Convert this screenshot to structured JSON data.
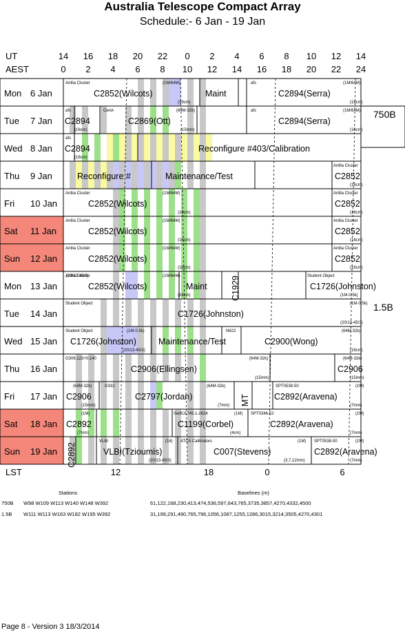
{
  "title": "Australia Telescope Compact Array",
  "subtitle": "Schedule:- 6  Jan - 19 Jan",
  "axes": {
    "ut_label": "UT",
    "aest_label": "AEST",
    "lst_label": "LST",
    "ut_ticks": [
      "14",
      "16",
      "18",
      "20",
      "22",
      "0",
      "2",
      "4",
      "6",
      "8",
      "10",
      "12",
      "14"
    ],
    "aest_ticks": [
      "0",
      "2",
      "4",
      "6",
      "8",
      "10",
      "12",
      "14",
      "16",
      "18",
      "20",
      "22",
      "24"
    ],
    "lst_ticks": [
      "12",
      "18",
      "0",
      "6"
    ]
  },
  "days": [
    {
      "day": "Mon",
      "date": "6 Jan",
      "weekend": false
    },
    {
      "day": "Tue",
      "date": "7 Jan",
      "weekend": false
    },
    {
      "day": "Wed",
      "date": "8 Jan",
      "weekend": false
    },
    {
      "day": "Thu",
      "date": "9 Jan",
      "weekend": false
    },
    {
      "day": "Fri",
      "date": "10 Jan",
      "weekend": false
    },
    {
      "day": "Sat",
      "date": "11 Jan",
      "weekend": true
    },
    {
      "day": "Sun",
      "date": "12 Jan",
      "weekend": true
    },
    {
      "day": "Mon",
      "date": "13 Jan",
      "weekend": false
    },
    {
      "day": "Tue",
      "date": "14 Jan",
      "weekend": false
    },
    {
      "day": "Wed",
      "date": "15 Jan",
      "weekend": false
    },
    {
      "day": "Thu",
      "date": "16 Jan",
      "weekend": false
    },
    {
      "day": "Fri",
      "date": "17 Jan",
      "weekend": false
    },
    {
      "day": "Sat",
      "date": "18 Jan",
      "weekend": true
    },
    {
      "day": "Sun",
      "date": "19 Jan",
      "weekend": true
    }
  ],
  "configs": [
    "750B",
    "1.5B"
  ],
  "colors": {
    "weekend": "#f4877a",
    "gray": "#c8c8c8",
    "green": "#9de08a",
    "blue": "#c8c8f8",
    "yellow": "#fafaa0"
  },
  "row_texts": [
    {
      "big": [
        "C2852(Wilcots)",
        "Maint",
        "C2894(Serra)"
      ],
      "small": [
        "Antlia Cluster",
        "(1M/64M)",
        "(16cm)",
        "afs",
        "(1M/64M)",
        "(16cm)"
      ]
    },
    {
      "big": [
        "C2894",
        "C2869(Ott)",
        "C2894(Serra)"
      ],
      "small": [
        "afs",
        "(16cm)",
        "CenA",
        "(64M-32k)",
        "(15mm)",
        "afs",
        "(1M/64M)",
        "(16cm)"
      ]
    },
    {
      "big": [
        "C2894",
        "Reconfigure #403/Calibration"
      ],
      "small": [
        "afs",
        "(16cm)"
      ]
    },
    {
      "big": [
        "Reconfigure #",
        "Maintenance/Test",
        "C2852"
      ],
      "small": [
        "Antlia Cluster",
        "(16cm)"
      ]
    },
    {
      "big": [
        "C2852(Wilcots)",
        "C2852"
      ],
      "small": [
        "Antlia Cluster",
        "(1M/64M)",
        "(16cm)",
        "Antlia Cluster",
        "(16cm)"
      ]
    },
    {
      "big": [
        "C2852(Wilcots)",
        "C2852"
      ],
      "small": [
        "Antlia Cluster",
        "(1M/64M)",
        "(16cm)",
        "Antlia Cluster",
        "(16cm)"
      ]
    },
    {
      "big": [
        "C2852(Wilcots)",
        "C2852"
      ],
      "small": [
        "Antlia Cluster",
        "(1M/64M)",
        "(16cm)",
        "Antlia Cluster",
        "(16cm)"
      ]
    },
    {
      "big": [
        "C2852(Wilcots)",
        "Maint",
        "C1929",
        "C1726(Johnston)"
      ],
      "small": [
        "Antlia Cluster",
        "(1M/64M)",
        "(16cm)",
        "Student Object",
        "(1M-0.5k)",
        "(20/13-45/3)"
      ]
    },
    {
      "big": [
        "C1726(Johnston)"
      ],
      "small": [
        "Student Object",
        "(1M-0.5k)",
        "(20/13-45/3)"
      ]
    },
    {
      "big": [
        "C1726(Johnston)",
        "Maintenance/Test",
        "C2900(Wong)"
      ],
      "small": [
        "Student Object",
        "(1M-0.5k)",
        "(20/13-45/3)",
        "N622",
        "(64M-32k)",
        "(16cm)"
      ]
    },
    {
      "big": [
        "C2906(Ellingsen)",
        "C2906"
      ],
      "small": [
        "G306.123+0.140",
        "(64M-32k)",
        "(15mm)",
        "(64M-32k)",
        "(15mm)"
      ]
    },
    {
      "big": [
        "C2906",
        "C2797(Jordan)",
        "MT",
        "C2892(Aravena)"
      ],
      "small": [
        "(64M-32k)",
        "(15mm)",
        "G332",
        "(64M-32k)",
        "(7mm)",
        "SPT0538-50",
        "(1M)",
        "(7mm)"
      ]
    },
    {
      "big": [
        "C2892",
        "C1199(Corbel)",
        "C2892(Aravena)"
      ],
      "small": [
        "(1M)",
        "(7mm)",
        "SwiftJ1745.1-2624",
        "(1M)",
        "(4cm)",
        "SPT0346-52",
        "(1M)",
        "(7mm)"
      ]
    },
    {
      "big": [
        "C2892",
        "VLBI(Tzioumis)",
        "C007(Stevens)",
        "C2892(Aravena)"
      ],
      "small": [
        "VLBI",
        "(16)",
        "(20/13-45/3)",
        "ATCA Calibrators",
        "(1M)",
        "(3,7,12mm)",
        "SPT0538-50",
        "(1M)",
        "(7mm)"
      ]
    }
  ],
  "footer": {
    "stations_label": "Stations",
    "baselines_label": "Baselines (m)",
    "rows": [
      {
        "config": "750B",
        "stations": "W98 W109 W113 W140 W148 W392",
        "baselines": "61,122,168,230,413,474,536,597,643,765,3735,3857,4270,4332,4500"
      },
      {
        "config": "1.5B",
        "stations": "W111 W113 W163 W182 W195 W392",
        "baselines": "31,199,291,490,765,796,1056,1087,1255,1286,3015,3214,3505,4270,4301"
      }
    ],
    "page_footer": "Page 8 - Version 3  18/3/2014"
  }
}
